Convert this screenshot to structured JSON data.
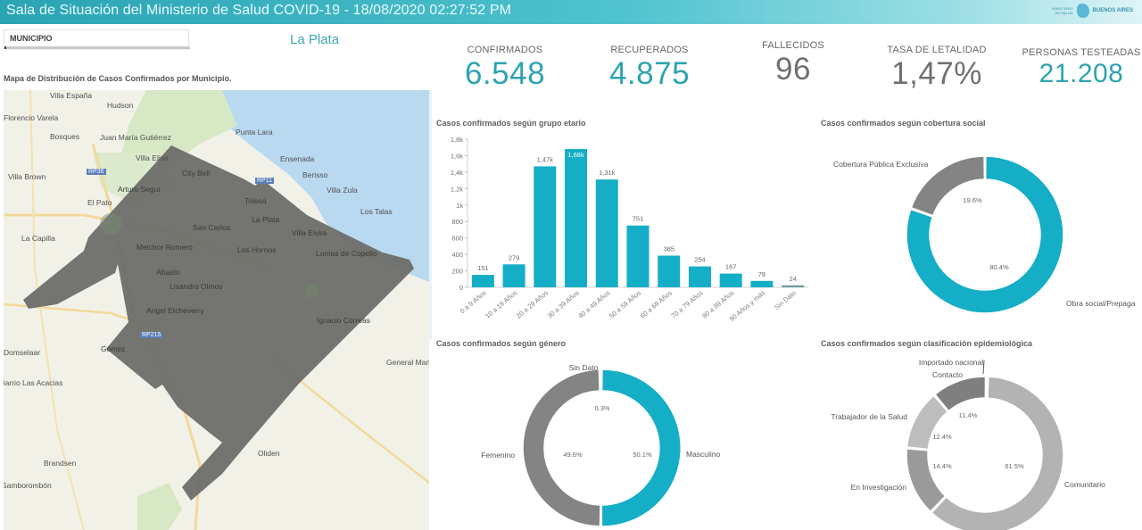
{
  "header": {
    "title": "Sala de Situación del Ministerio de Salud COVID-19 - 18/08/2020 02:27:52 PM",
    "logo_text_small": "MINISTERIO DE SALUD",
    "logo_text_big": "BUENOS AIRES",
    "logo_icon": "province-map-icon"
  },
  "filter": {
    "label": "MUNICIPIO",
    "selected": "La Plata"
  },
  "map": {
    "title": "Mapa de Distribución de Casos Confirmados por Municipio.",
    "places": [
      "Villa España",
      "Hudson",
      "Florencio Varela",
      "Bosques",
      "Juan María Gutiérrez",
      "Punta Lara",
      "Villa Elisa",
      "Ensenada",
      "City Bell",
      "Berisso",
      "Villa Brown",
      "RP36",
      "Arturo Seguí",
      "RP11",
      "Villa Zula",
      "El Pato",
      "Tolosa",
      "La Plata",
      "Los Talas",
      "San Carlos",
      "La Capilla",
      "Villa Elvira",
      "Melchor Romero",
      "Los Hornos",
      "Lomas de Copello",
      "Abasto",
      "Lisandro Olmos",
      "Angel Etcheverry",
      "Ignacio Correas",
      "RP215",
      "Domselaar",
      "Gómez",
      "General Mansilla",
      "Barrio Las Acacias",
      "Brandsen",
      "Oliden",
      "Samborombón"
    ],
    "colors": {
      "water": "#b9d9f0",
      "land": "#f2f1e8",
      "park": "#d6e8c4",
      "municipio": "#6b6b66",
      "road": "#f2d99a"
    }
  },
  "kpis": [
    {
      "label": "CONFIRMADOS",
      "value": "6.548",
      "color": "#2ea3b0"
    },
    {
      "label": "RECUPERADOS",
      "value": "4.875",
      "color": "#2ea3b0"
    },
    {
      "label": "FALLECIDOS",
      "value": "96",
      "color": "#707070"
    },
    {
      "label": "TASA DE LETALIDAD",
      "value": "1,47%",
      "color": "#707070"
    },
    {
      "label": "PERSONAS TESTEADAS",
      "value": "21.208",
      "color": "#2ea3b0"
    }
  ],
  "chart_data": [
    {
      "type": "bar",
      "title": "Casos confirmados según grupo etario",
      "categories": [
        "0 a 9 Años",
        "10 a 19 Años",
        "20 a 29 Años",
        "30 a 39 Años",
        "40 a 49 Años",
        "50 a 59 Años",
        "60 a 69 Años",
        "70 a 79 Años",
        "80 a 89 Años",
        "90 Años y más",
        "Sin Dato"
      ],
      "values": [
        151,
        279,
        1470,
        1680,
        1310,
        751,
        385,
        254,
        167,
        78,
        24
      ],
      "data_labels": [
        "151",
        "279",
        "1,47k",
        "1,68k",
        "1,31k",
        "751",
        "385",
        "254",
        "167",
        "78",
        "24"
      ],
      "yticks": [
        "0",
        "200",
        "400",
        "600",
        "800",
        "1k",
        "1,2k",
        "1,4k",
        "1,6k",
        "1,8k"
      ],
      "ylim": [
        0,
        1800
      ],
      "colors": {
        "bar": "#14aec6",
        "bar_nodata": "#6f9aa3",
        "highlight_label": "#ffffff"
      }
    },
    {
      "type": "pie",
      "title": "Casos confirmados según cobertura social",
      "labels": [
        "Obra social/Prepaga",
        "Cobertura Pública Exclusiva"
      ],
      "values": [
        80.4,
        19.6
      ],
      "value_labels": [
        "80.4%",
        "19.6%"
      ],
      "colors": [
        "#14aec6",
        "#848484"
      ]
    },
    {
      "type": "pie",
      "title": "Casos confirmados según género",
      "labels": [
        "Masculino",
        "Femenino",
        "Sin Dato"
      ],
      "values": [
        50.1,
        49.6,
        0.3
      ],
      "value_labels": [
        "50.1%",
        "49.6%",
        "0.3%"
      ],
      "colors": [
        "#14aec6",
        "#848484",
        "#c8c8c8"
      ]
    },
    {
      "type": "pie",
      "title": "Casos confirmados según clasificación epidemiológica",
      "labels": [
        "Comunitario",
        "En Investigación",
        "Trabajador de la Salud",
        "Contacto",
        "Importado nacional"
      ],
      "values": [
        61.5,
        14.4,
        12.4,
        11.4,
        0.3
      ],
      "value_labels": [
        "61.5%",
        "14.4%",
        "12.4%",
        "11.4%",
        ""
      ],
      "colors": [
        "#b3b3b3",
        "#9a9a9a",
        "#bdbdbd",
        "#7f7f7f",
        "#5a5a5a"
      ]
    }
  ]
}
